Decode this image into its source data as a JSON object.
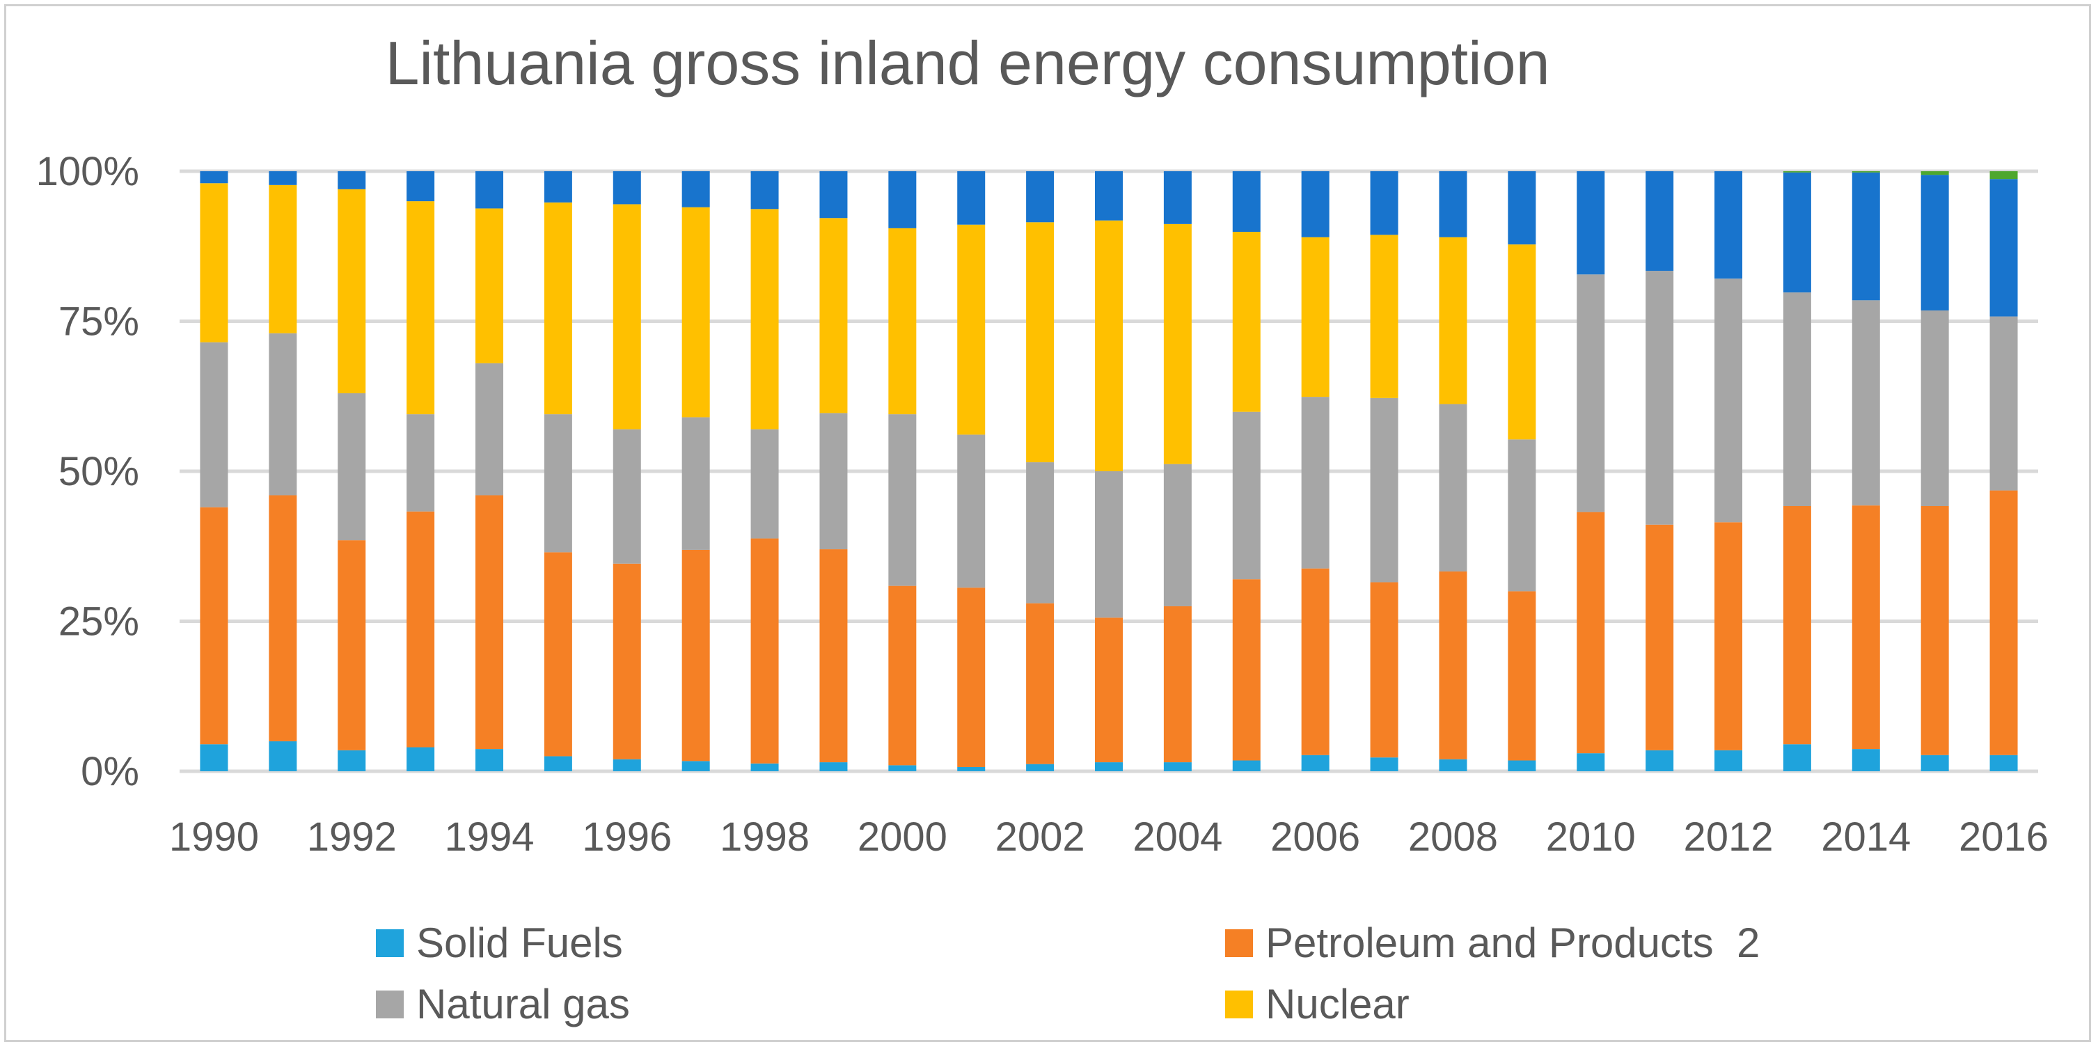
{
  "chart_data": {
    "type": "bar",
    "stacked": true,
    "title": "Lithuania gross inland energy consumption",
    "xlabel": "",
    "ylabel": "",
    "ylim": [
      0,
      100
    ],
    "y_ticks": [
      "0%",
      "25%",
      "50%",
      "75%",
      "100%"
    ],
    "x_tick_labels": [
      "1990",
      "1992",
      "1994",
      "1996",
      "1998",
      "2000",
      "2002",
      "2004",
      "2006",
      "2008",
      "2010",
      "2012",
      "2014",
      "2016"
    ],
    "grid": true,
    "legend_position": "bottom",
    "categories": [
      "1990",
      "1991",
      "1992",
      "1993",
      "1994",
      "1995",
      "1996",
      "1997",
      "1998",
      "1999",
      "2000",
      "2001",
      "2002",
      "2003",
      "2004",
      "2005",
      "2006",
      "2007",
      "2008",
      "2009",
      "2010",
      "2011",
      "2012",
      "2013",
      "2014",
      "2015",
      "2016"
    ],
    "series": [
      {
        "name": "Solid Fuels",
        "color": "#1fa3dc",
        "values": [
          4.5,
          5,
          3.5,
          4,
          3.7,
          2.5,
          2,
          1.7,
          1.3,
          1.5,
          1,
          0.7,
          1.2,
          1.5,
          1.5,
          1.8,
          2.7,
          2.3,
          2,
          1.8,
          3,
          3.5,
          3.5,
          4.5,
          3.7,
          2.7,
          2.7
        ]
      },
      {
        "name": "Petroleum and Products  2",
        "color": "#f58025",
        "values": [
          39.5,
          41,
          35,
          39.3,
          42.3,
          34,
          32.6,
          35.2,
          37.5,
          35.5,
          29.9,
          29.9,
          26.8,
          24.1,
          26,
          30.2,
          31.1,
          29.2,
          31.3,
          28.2,
          40.2,
          37.6,
          38,
          39.7,
          40.6,
          41.5,
          44.1
        ]
      },
      {
        "name": "Natural gas",
        "color": "#a6a6a6",
        "values": [
          27.5,
          27,
          24.5,
          16.2,
          22,
          23,
          22.4,
          22.1,
          18.2,
          22.7,
          28.6,
          25.5,
          23.5,
          24.4,
          23.7,
          27.9,
          28.6,
          30.7,
          27.9,
          25.3,
          39.6,
          42.3,
          40.6,
          35.6,
          34.2,
          32.6,
          29
        ]
      },
      {
        "name": "Nuclear",
        "color": "#ffc000",
        "values": [
          26.5,
          24.7,
          34,
          35.5,
          25.8,
          35.3,
          37.5,
          35,
          36.7,
          32.5,
          31,
          35,
          40,
          41.8,
          40,
          30,
          26.6,
          27.2,
          27.8,
          32.5,
          0,
          0,
          0,
          0,
          0,
          0,
          0
        ]
      },
      {
        "name": "",
        "color": "#1874cd",
        "values": [
          2,
          2.3,
          3,
          5,
          6.2,
          5.2,
          5.5,
          6,
          6.3,
          7.8,
          9.5,
          8.9,
          8.5,
          8.2,
          8.8,
          10.1,
          11,
          10.6,
          11,
          12.2,
          17.2,
          16.6,
          17.9,
          20,
          21.3,
          22.6,
          22.9
        ]
      },
      {
        "name": "",
        "color": "#4ea72e",
        "values": [
          0,
          0,
          0,
          0,
          0,
          0,
          0,
          0,
          0,
          0,
          0,
          0,
          0,
          0,
          0,
          0,
          0,
          0,
          0,
          0,
          0,
          0,
          0,
          0.2,
          0.2,
          0.6,
          1.3
        ]
      }
    ]
  }
}
